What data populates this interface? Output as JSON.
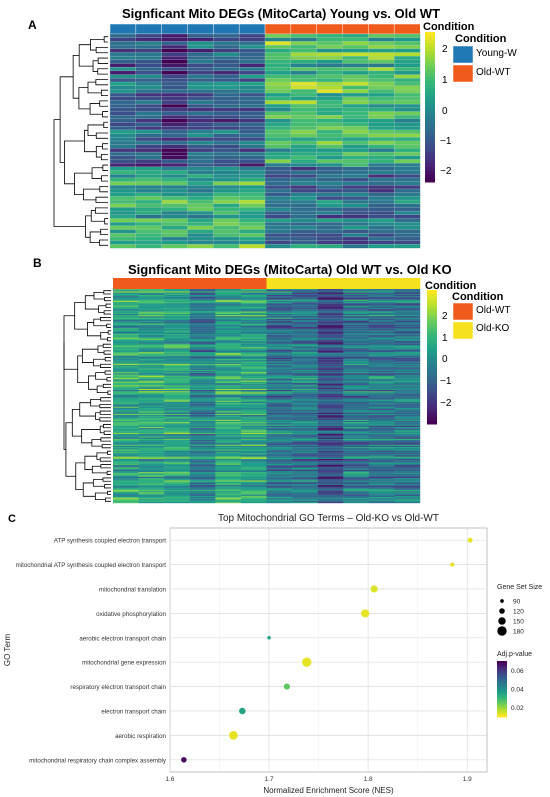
{
  "panels": {
    "a": {
      "letter": "A",
      "title": "Signficant Mito DEGs (MitoCarta) Young vs. Old WT",
      "annotation_title": "Condition",
      "colorbar_ticks": [
        "2",
        "1",
        "0",
        "−1",
        "−2"
      ],
      "groups": [
        {
          "label": "Young-W",
          "color": "#1f77b4"
        },
        {
          "label": "Old-WT",
          "color": "#f05a1a"
        }
      ]
    },
    "b": {
      "letter": "B",
      "title": "Signficant Mito DEGs (MitoCarta) Old WT vs. Old KO",
      "annotation_title": "Condition",
      "colorbar_ticks": [
        "2",
        "1",
        "0",
        "−1",
        "−2"
      ],
      "groups": [
        {
          "label": "Old-WT",
          "color": "#f05a1a"
        },
        {
          "label": "Old-KO",
          "color": "#f5e11e"
        }
      ]
    },
    "c": {
      "letter": "C"
    }
  },
  "chart_data": {
    "type": "scatter",
    "title": "Top Mitochondrial GO Terms – Old-KO vs Old-WT",
    "xlabel": "Normalized Enrichment Score (NES)",
    "ylabel": "GO Term",
    "xlim": [
      1.6,
      1.92
    ],
    "x_ticks": [
      "1.6",
      "1.7",
      "1.8",
      "1.9"
    ],
    "grid": true,
    "points": [
      {
        "term": "ATP synthesis coupled electron transport",
        "nes": 1.903,
        "size": 110,
        "padj": 0.012
      },
      {
        "term": "mitochondrial ATP synthesis coupled electron transport",
        "nes": 1.885,
        "size": 100,
        "padj": 0.012
      },
      {
        "term": "mitochondrial translation",
        "nes": 1.806,
        "size": 145,
        "padj": 0.013
      },
      {
        "term": "oxidative phosphorylation",
        "nes": 1.797,
        "size": 160,
        "padj": 0.012
      },
      {
        "term": "aerobic electron transport chain",
        "nes": 1.7,
        "size": 88,
        "padj": 0.035
      },
      {
        "term": "mitochondrial gene expression",
        "nes": 1.738,
        "size": 180,
        "padj": 0.012
      },
      {
        "term": "respiratory electron transport chain",
        "nes": 1.718,
        "size": 130,
        "padj": 0.025
      },
      {
        "term": "electron transport chain",
        "nes": 1.673,
        "size": 135,
        "padj": 0.035
      },
      {
        "term": "aerobic respiration",
        "nes": 1.664,
        "size": 170,
        "padj": 0.012
      },
      {
        "term": "mitochondrial respiratory chain complex assembly",
        "nes": 1.614,
        "size": 120,
        "padj": 0.068
      }
    ],
    "size_legend": {
      "title": "Gene Set Size",
      "values": [
        90,
        120,
        150,
        180
      ]
    },
    "color_legend": {
      "title": "Adj.p-value",
      "ticks": [
        0.06,
        0.04,
        0.02
      ],
      "range": [
        0.01,
        0.07
      ]
    }
  }
}
